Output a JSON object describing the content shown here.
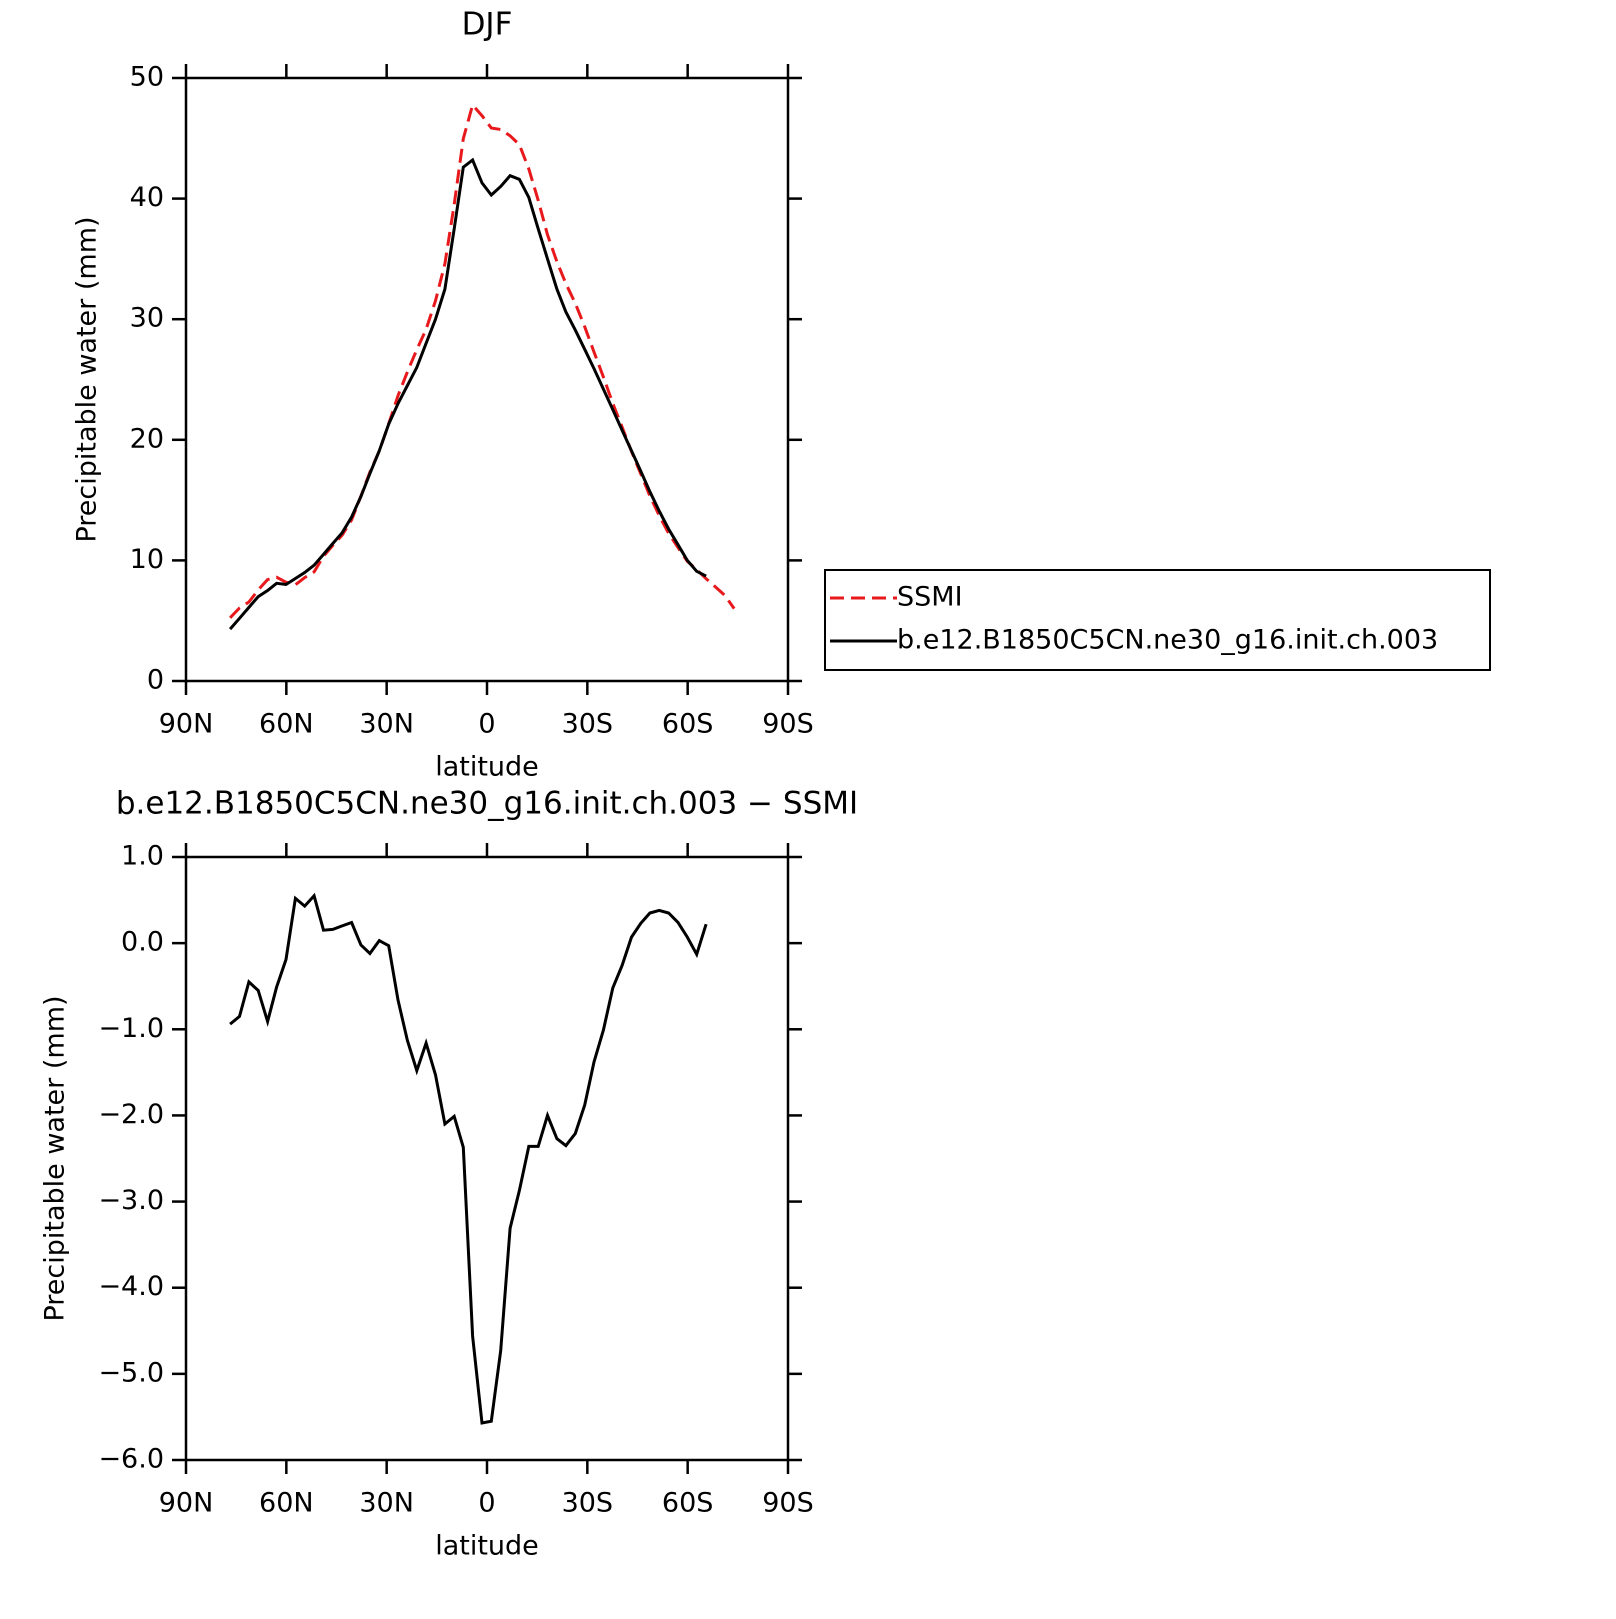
{
  "chart_data": [
    {
      "type": "line",
      "title": "DJF",
      "xlabel": "latitude",
      "ylabel": "Precipitable water (mm)",
      "x": [
        76.8,
        74.0,
        71.2,
        68.4,
        65.6,
        62.9,
        60.1,
        57.3,
        54.5,
        51.7,
        48.9,
        46.1,
        43.3,
        40.5,
        37.7,
        35.0,
        32.2,
        29.4,
        26.6,
        23.8,
        21.0,
        18.2,
        15.4,
        12.6,
        9.8,
        7.1,
        4.3,
        1.5,
        -1.3,
        -4.1,
        -6.9,
        -9.7,
        -12.5,
        -15.3,
        -18.1,
        -20.9,
        -23.6,
        -26.4,
        -29.2,
        -32.0,
        -34.8,
        -37.6,
        -40.4,
        -43.2,
        -46.0,
        -48.7,
        -51.5,
        -54.3,
        -57.1,
        -59.9,
        -62.7,
        -65.5,
        -68.3,
        -71.1,
        -73.9
      ],
      "series": [
        {
          "name": "SSMI",
          "color": "#e8191c",
          "dash": true,
          "values": [
            5.24,
            6.05,
            6.55,
            7.55,
            8.41,
            8.61,
            8.19,
            7.98,
            8.57,
            9.05,
            10.35,
            11.24,
            12.1,
            13.36,
            15.32,
            17.32,
            19.07,
            21.33,
            23.66,
            25.63,
            27.48,
            29.16,
            31.53,
            34.6,
            39.51,
            44.97,
            47.76,
            46.87,
            45.85,
            45.73,
            45.21,
            44.47,
            42.46,
            39.86,
            37.0,
            34.77,
            32.95,
            31.31,
            29.38,
            27.28,
            25.21,
            23.02,
            21.06,
            19.03,
            17.17,
            15.35,
            13.72,
            12.25,
            11.06,
            9.93,
            9.23,
            8.48,
            7.8,
            7.1,
            6.0
          ]
        },
        {
          "name": "b.e12.B1850C5CN.ne30_g16.init.ch.003",
          "color": "#000000",
          "dash": false,
          "values": [
            4.3,
            5.2,
            6.1,
            7.0,
            7.5,
            8.1,
            8.0,
            8.5,
            9.0,
            9.6,
            10.5,
            11.4,
            12.3,
            13.6,
            15.3,
            17.2,
            19.1,
            21.3,
            23.0,
            24.5,
            26.0,
            28.0,
            30.0,
            32.5,
            37.5,
            42.6,
            43.2,
            41.3,
            40.3,
            41.0,
            41.9,
            41.6,
            40.1,
            37.5,
            35.0,
            32.5,
            30.6,
            29.1,
            27.5,
            25.9,
            24.2,
            22.5,
            20.8,
            19.1,
            17.4,
            15.7,
            14.1,
            12.6,
            11.3,
            10.0,
            9.1,
            8.7,
            null,
            null,
            null
          ]
        }
      ],
      "xlim": [
        90,
        -90
      ],
      "xticks": [
        {
          "value": 90,
          "label": "90N"
        },
        {
          "value": 60,
          "label": "60N"
        },
        {
          "value": 30,
          "label": "30N"
        },
        0,
        {
          "value": -30,
          "label": "30S"
        },
        {
          "value": -60,
          "label": "60S"
        },
        {
          "value": -90,
          "label": "90S"
        }
      ],
      "ylim": [
        0,
        50
      ],
      "yticks": [
        0,
        10,
        20,
        30,
        40,
        50
      ],
      "legend": "right"
    },
    {
      "type": "line",
      "title": "b.e12.B1850C5CN.ne30_g16.init.ch.003 − SSMI",
      "xlabel": "latitude",
      "ylabel": "Precipitable water (mm)",
      "x": [
        76.8,
        74.0,
        71.2,
        68.4,
        65.6,
        62.9,
        60.1,
        57.3,
        54.5,
        51.7,
        48.9,
        46.1,
        43.3,
        40.5,
        37.7,
        35.0,
        32.2,
        29.4,
        26.6,
        23.8,
        21.0,
        18.2,
        15.4,
        12.6,
        9.8,
        7.1,
        4.3,
        1.5,
        -1.3,
        -4.1,
        -6.9,
        -9.7,
        -12.5,
        -15.3,
        -18.1,
        -20.9,
        -23.6,
        -26.4,
        -29.2,
        -32.0,
        -34.8,
        -37.6,
        -40.4,
        -43.2,
        -46.0,
        -48.7,
        -51.5,
        -54.3,
        -57.1,
        -59.9,
        -62.7,
        -65.5
      ],
      "values": [
        -0.94,
        -0.85,
        -0.45,
        -0.55,
        -0.91,
        -0.51,
        -0.19,
        0.52,
        0.43,
        0.55,
        0.15,
        0.16,
        0.2,
        0.24,
        -0.02,
        -0.12,
        0.03,
        -0.03,
        -0.66,
        -1.13,
        -1.48,
        -1.16,
        -1.53,
        -2.1,
        -2.01,
        -2.37,
        -4.56,
        -5.57,
        -5.55,
        -4.73,
        -3.31,
        -2.87,
        -2.36,
        -2.36,
        -2.0,
        -2.27,
        -2.35,
        -2.21,
        -1.88,
        -1.38,
        -1.01,
        -0.52,
        -0.26,
        0.07,
        0.23,
        0.35,
        0.38,
        0.35,
        0.24,
        0.07,
        -0.13,
        0.22
      ],
      "color": "#000000",
      "xlim": [
        90,
        -90
      ],
      "xticks": [
        {
          "value": 90,
          "label": "90N"
        },
        {
          "value": 60,
          "label": "60N"
        },
        {
          "value": 30,
          "label": "30N"
        },
        0,
        {
          "value": -30,
          "label": "30S"
        },
        {
          "value": -60,
          "label": "60S"
        },
        {
          "value": -90,
          "label": "90S"
        }
      ],
      "ylim": [
        -6,
        1
      ],
      "yticks": [
        {
          "value": -6,
          "label": "−6.0"
        },
        {
          "value": -5,
          "label": "−5.0"
        },
        {
          "value": -4,
          "label": "−4.0"
        },
        {
          "value": -3,
          "label": "−3.0"
        },
        {
          "value": -2,
          "label": "−2.0"
        },
        {
          "value": -1,
          "label": "−1.0"
        },
        {
          "value": 0,
          "label": "0.0"
        },
        {
          "value": 1,
          "label": "1.0"
        }
      ]
    }
  ]
}
